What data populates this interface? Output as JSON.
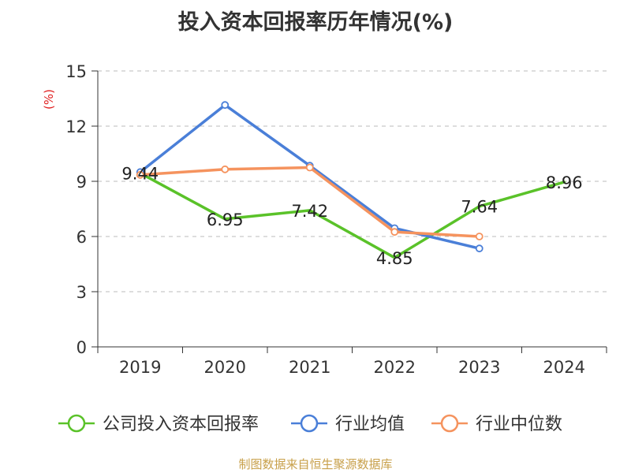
{
  "chart_data": {
    "type": "line",
    "title": "投入资本回报率历年情况(%)",
    "ylabel": "(%)",
    "xlabel": "",
    "categories": [
      "2019",
      "2020",
      "2021",
      "2022",
      "2023",
      "2024"
    ],
    "ylim": [
      0,
      15
    ],
    "yticks": [
      0,
      3,
      6,
      9,
      12,
      15
    ],
    "grid": true,
    "legend_position": "bottom",
    "series": [
      {
        "name": "公司投入资本回报率",
        "color": "#5ac229",
        "values": [
          9.44,
          6.95,
          7.42,
          4.85,
          7.64,
          8.96
        ],
        "show_labels": true
      },
      {
        "name": "行业均值",
        "color": "#4a7fd8",
        "values": [
          9.5,
          13.15,
          9.85,
          6.45,
          5.35,
          null
        ],
        "show_labels": false
      },
      {
        "name": "行业中位数",
        "color": "#f5935e",
        "values": [
          9.35,
          9.65,
          9.75,
          6.25,
          6.0,
          null
        ],
        "show_labels": false
      }
    ],
    "data_label_values": [
      "9.44",
      "6.95",
      "7.42",
      "4.85",
      "7.64",
      "8.96"
    ]
  },
  "source": "制图数据来自恒生聚源数据库",
  "colors": {
    "axis": "#333333",
    "grid": "#bbbbbb",
    "ylabel": "#e02020",
    "source": "#c8a04a"
  }
}
